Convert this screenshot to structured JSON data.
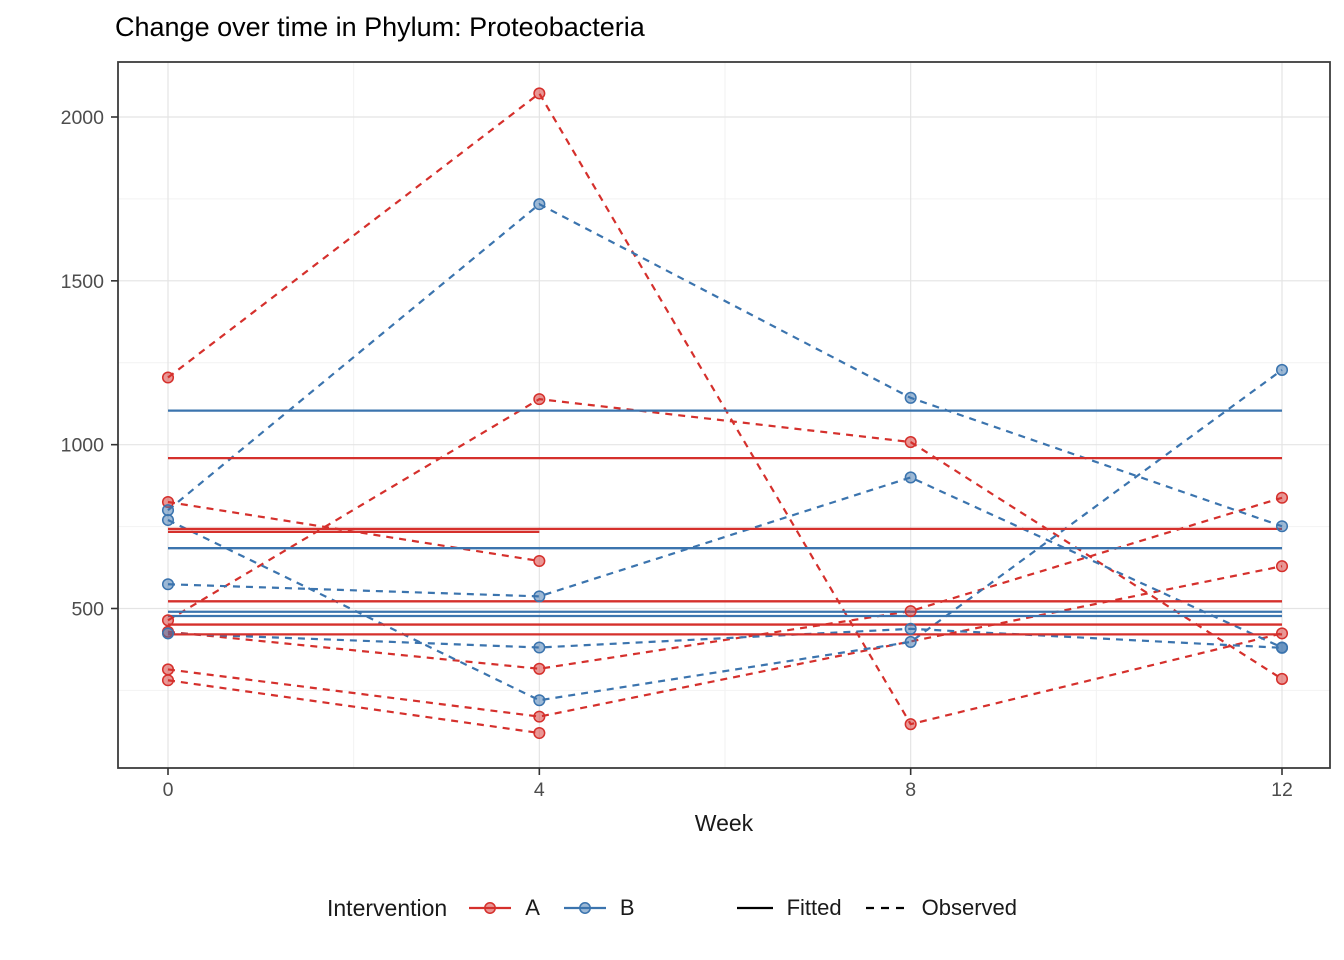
{
  "title": "Change over time in Phylum: Proteobacteria",
  "axes": {
    "x_label": "Week",
    "x_ticks": [
      0,
      4,
      8,
      12
    ],
    "y_ticks": [
      500,
      1000,
      1500,
      2000
    ],
    "x_minor": [
      2,
      6,
      10
    ],
    "y_minor": [
      250,
      750,
      1250,
      1750
    ]
  },
  "legend": {
    "title": "Intervention",
    "groups": [
      {
        "label": "A",
        "color_key": "A"
      },
      {
        "label": "B",
        "color_key": "B"
      }
    ],
    "linetypes": [
      {
        "label": "Fitted",
        "style": "solid"
      },
      {
        "label": "Observed",
        "style": "dashed"
      }
    ]
  },
  "colors": {
    "A": "#d5302c",
    "B": "#3b74ae",
    "grid_major": "#e4e4e4",
    "grid_minor": "#f2f2f2",
    "panel_border": "#3c3c3c",
    "tick_mark": "#333333",
    "tick_text": "#4d4d4d",
    "text": "#1a1a1a"
  },
  "chart_data": {
    "type": "line",
    "title": "Change over time in Phylum: Proteobacteria",
    "xlabel": "Week",
    "ylabel": "",
    "x": [
      0,
      4,
      8,
      12
    ],
    "xlim": [
      -0.54,
      12.52
    ],
    "ylim": [
      17,
      2167
    ],
    "legend_position": "bottom",
    "grid": true,
    "subjects": [
      {
        "id": "A1",
        "intervention": "A",
        "observed": [
          1205,
          2072,
          147,
          424
        ],
        "fitted": 959,
        "fitted_weeks": [
          0,
          12
        ]
      },
      {
        "id": "A2",
        "intervention": "A",
        "observed": [
          464,
          1139,
          1008,
          285
        ],
        "fitted": 743,
        "fitted_weeks": [
          0,
          12
        ]
      },
      {
        "id": "A3",
        "intervention": "A",
        "observed": [
          825,
          645,
          null,
          null
        ],
        "fitted": 734,
        "fitted_weeks": [
          0,
          4
        ]
      },
      {
        "id": "A4",
        "intervention": "A",
        "observed": [
          429,
          316,
          492,
          838
        ],
        "fitted": 522,
        "fitted_weeks": [
          0,
          12
        ]
      },
      {
        "id": "A5",
        "intervention": "A",
        "observed": [
          314,
          170,
          null,
          629
        ],
        "fitted": 451,
        "fitted_weeks": [
          0,
          12
        ]
      },
      {
        "id": "A6",
        "intervention": "A",
        "observed": [
          281,
          120,
          null,
          null
        ],
        "fitted": 421,
        "fitted_weeks": [
          0,
          12
        ]
      },
      {
        "id": "B1",
        "intervention": "B",
        "observed": [
          800,
          1734,
          1143,
          751
        ],
        "fitted": 1104,
        "fitted_weeks": [
          0,
          12
        ]
      },
      {
        "id": "B2",
        "intervention": "B",
        "observed": [
          770,
          220,
          398,
          1228
        ],
        "fitted": 684,
        "fitted_weeks": [
          0,
          12
        ]
      },
      {
        "id": "B3",
        "intervention": "B",
        "observed": [
          574,
          537,
          900,
          381
        ],
        "fitted": 490,
        "fitted_weeks": [
          0,
          12
        ]
      },
      {
        "id": "B4",
        "intervention": "B",
        "observed": [
          424,
          381,
          438,
          380
        ],
        "fitted": 477,
        "fitted_weeks": [
          0,
          12
        ]
      }
    ]
  }
}
